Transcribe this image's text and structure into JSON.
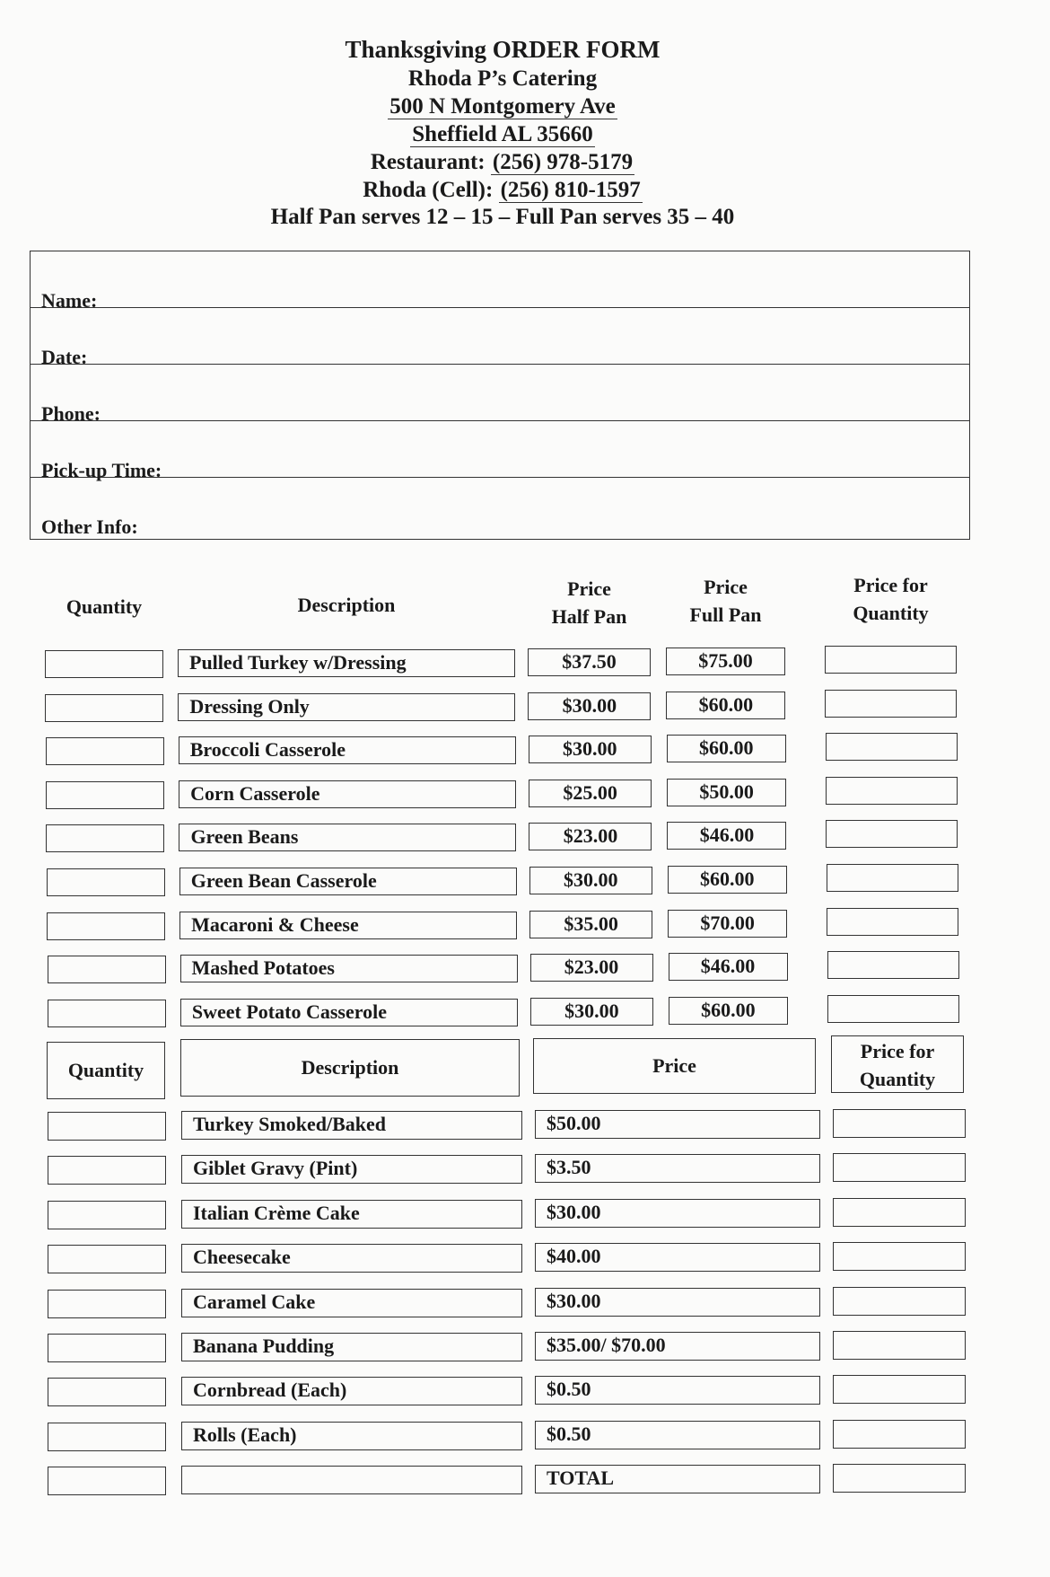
{
  "header": {
    "title": "Thanksgiving ORDER FORM",
    "business": "Rhoda P’s Catering",
    "address1": "500 N Montgomery Ave",
    "address2": "Sheffield AL 35660",
    "restaurant_label": "Restaurant:",
    "restaurant_phone": "(256) 978-5179",
    "cell_label": "Rhoda (Cell):",
    "cell_phone": "(256) 810-1597",
    "serving_note": "Half Pan serves 12 – 15 – Full Pan serves 35 – 40"
  },
  "info_fields": [
    "Name:",
    "Date:",
    "Phone:",
    "Pick-up Time:",
    "Other Info:"
  ],
  "table1": {
    "headers": {
      "quantity": "Quantity",
      "description": "Description",
      "half_1": "Price",
      "half_2": "Half Pan",
      "full_1": "Price",
      "full_2": "Full Pan",
      "pfq_1": "Price for",
      "pfq_2": "Quantity"
    },
    "rows": [
      {
        "description": "Pulled Turkey w/Dressing",
        "half": "$37.50",
        "full": "$75.00"
      },
      {
        "description": "Dressing Only",
        "half": "$30.00",
        "full": "$60.00"
      },
      {
        "description": "Broccoli Casserole",
        "half": "$30.00",
        "full": "$60.00"
      },
      {
        "description": "Corn Casserole",
        "half": "$25.00",
        "full": "$50.00"
      },
      {
        "description": "Green Beans",
        "half": "$23.00",
        "full": "$46.00"
      },
      {
        "description": "Green Bean Casserole",
        "half": "$30.00",
        "full": "$60.00"
      },
      {
        "description": "Macaroni & Cheese",
        "half": "$35.00",
        "full": "$70.00"
      },
      {
        "description": "Mashed Potatoes",
        "half": "$23.00",
        "full": "$46.00"
      },
      {
        "description": "Sweet Potato Casserole",
        "half": "$30.00",
        "full": "$60.00"
      }
    ]
  },
  "table2": {
    "headers": {
      "quantity": "Quantity",
      "description": "Description",
      "price": "Price",
      "pfq_1": "Price for",
      "pfq_2": "Quantity"
    },
    "rows": [
      {
        "description": "Turkey Smoked/Baked",
        "price": "$50.00"
      },
      {
        "description": "Giblet Gravy (Pint)",
        "price": "$3.50"
      },
      {
        "description": "Italian Crème Cake",
        "price": "$30.00"
      },
      {
        "description": "Cheesecake",
        "price": "$40.00"
      },
      {
        "description": "Caramel Cake",
        "price": "$30.00"
      },
      {
        "description": "Banana Pudding",
        "price": "$35.00/ $70.00"
      },
      {
        "description": "Cornbread (Each)",
        "price": "$0.50"
      },
      {
        "description": "Rolls (Each)",
        "price": "$0.50"
      },
      {
        "description": "",
        "price": "TOTAL"
      }
    ]
  }
}
